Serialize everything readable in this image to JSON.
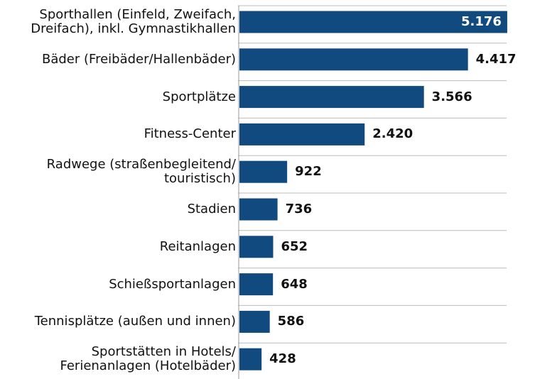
{
  "chart_data": {
    "type": "bar",
    "orientation": "horizontal",
    "color": "#104a7e",
    "categories": [
      "Sporthallen (Einfeld, Zweifach,\nDreifach), inkl. Gymnastikhallen",
      "Bäder (Freibäder/Hallenbäder)",
      "Sportplätze",
      "Fitness-Center",
      "Radwege (straßenbegleitend/\ntouristisch)",
      "Stadien",
      "Reitanlagen",
      "Schießsportanlagen",
      "Tennisplätze (außen und innen)",
      "Sportstätten in Hotels/\nFerienanlagen (Hotelbäder)"
    ],
    "values": [
      5176,
      4417,
      3566,
      2420,
      922,
      736,
      652,
      648,
      586,
      428
    ],
    "value_labels": [
      "5.176",
      "4.417",
      "3.566",
      "2.420",
      "922",
      "736",
      "652",
      "648",
      "586",
      "428"
    ]
  }
}
